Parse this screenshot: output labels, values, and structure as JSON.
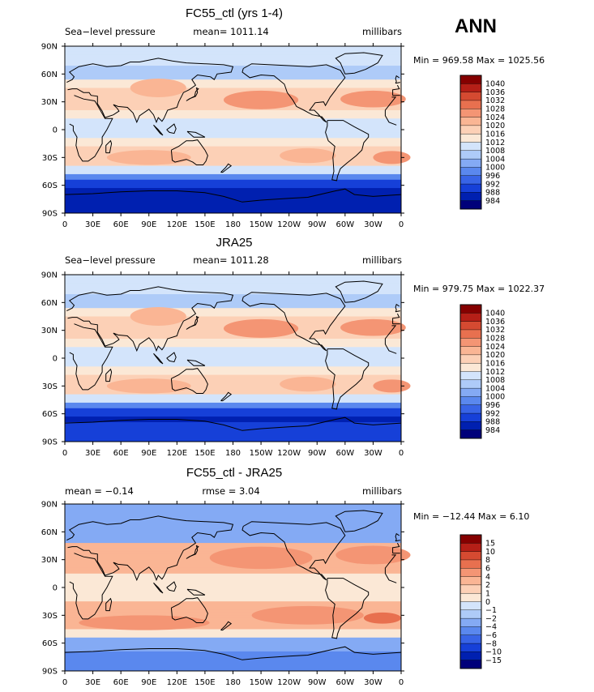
{
  "season": "ANN",
  "colors": {
    "pressure": [
      "#00007a",
      "#0020b0",
      "#1640d8",
      "#3864e6",
      "#5a88ee",
      "#84aaf4",
      "#aecbf8",
      "#d3e4fb",
      "#fbe8d6",
      "#fcd0b6",
      "#fab594",
      "#f49574",
      "#e8704f",
      "#d54a31",
      "#b51f17",
      "#850000"
    ],
    "diff": [
      "#00007a",
      "#0020b0",
      "#1640d8",
      "#3864e6",
      "#5a88ee",
      "#84aaf4",
      "#aecbf8",
      "#d3e4fb",
      "#fbe8d6",
      "#fcd0b6",
      "#fab594",
      "#f49574",
      "#e8704f",
      "#d54a31",
      "#b51f17",
      "#850000"
    ],
    "land_outline": "#000000"
  },
  "chart_data": [
    {
      "type": "heatmap",
      "title": "FC55_ctl (yrs 1-4)",
      "left_label": "Sea−level pressure",
      "center_label": "mean= 1011.14",
      "right_label": "millibars",
      "minmax": "Min = 969.58 Max = 1025.56",
      "x_ticks": [
        "0",
        "30E",
        "60E",
        "90E",
        "120E",
        "150E",
        "180",
        "150W",
        "120W",
        "90W",
        "60W",
        "30W",
        "0"
      ],
      "y_ticks": [
        "90N",
        "60N",
        "30N",
        "0",
        "30S",
        "60S",
        "90S"
      ],
      "colorbar": [
        "1040",
        "1036",
        "1032",
        "1028",
        "1024",
        "1020",
        "1016",
        "1012",
        "1008",
        "1004",
        "1000",
        "996",
        "992",
        "988",
        "984"
      ],
      "xlim": [
        0,
        360
      ],
      "ylim": [
        -90,
        90
      ],
      "mean": 1011.14,
      "min": 969.58,
      "max": 1025.56
    },
    {
      "type": "heatmap",
      "title": "JRA25",
      "left_label": "Sea−level pressure",
      "center_label": "mean= 1011.28",
      "right_label": "millibars",
      "minmax": "Min = 979.75 Max = 1022.37",
      "x_ticks": [
        "0",
        "30E",
        "60E",
        "90E",
        "120E",
        "150E",
        "180",
        "150W",
        "120W",
        "90W",
        "60W",
        "30W",
        "0"
      ],
      "y_ticks": [
        "90N",
        "60N",
        "30N",
        "0",
        "30S",
        "60S",
        "90S"
      ],
      "colorbar": [
        "1040",
        "1036",
        "1032",
        "1028",
        "1024",
        "1020",
        "1016",
        "1012",
        "1008",
        "1004",
        "1000",
        "996",
        "992",
        "988",
        "984"
      ],
      "xlim": [
        0,
        360
      ],
      "ylim": [
        -90,
        90
      ],
      "mean": 1011.28,
      "min": 979.75,
      "max": 1022.37
    },
    {
      "type": "heatmap",
      "title": "FC55_ctl - JRA25",
      "left_label": "mean =   −0.14",
      "center_label": "rmse =    3.04",
      "right_label": "millibars",
      "minmax": "Min = −12.44 Max =    6.10",
      "x_ticks": [
        "0",
        "30E",
        "60E",
        "90E",
        "120E",
        "150E",
        "180",
        "150W",
        "120W",
        "90W",
        "60W",
        "30W",
        "0"
      ],
      "y_ticks": [
        "90N",
        "60N",
        "30N",
        "0",
        "30S",
        "60S",
        "90S"
      ],
      "colorbar": [
        "15",
        "10",
        "8",
        "6",
        "4",
        "2",
        "1",
        "0",
        "−1",
        "−2",
        "−4",
        "−6",
        "−8",
        "−10",
        "−15"
      ],
      "xlim": [
        0,
        360
      ],
      "ylim": [
        -90,
        90
      ],
      "mean": -0.14,
      "rmse": 3.04,
      "min": -12.44,
      "max": 6.1
    }
  ]
}
